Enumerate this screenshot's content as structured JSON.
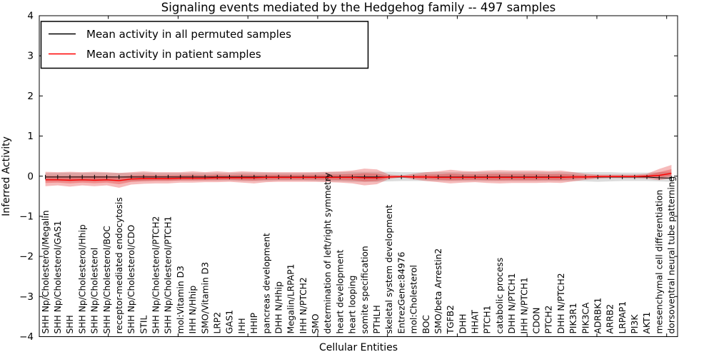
{
  "title": "Signaling events mediated by the Hedgehog family -- 497 samples",
  "axes": {
    "xlabel": "Cellular Entities",
    "ylabel": "Inferred Activity",
    "ytick_labels": [
      "4",
      "3",
      "2",
      "1",
      "0",
      "−1",
      "−2",
      "−3",
      "−4"
    ],
    "ytick_values": [
      4,
      3,
      2,
      1,
      0,
      -1,
      -2,
      -3,
      -4
    ]
  },
  "legend": {
    "items": [
      {
        "label": "Mean activity in all permuted samples",
        "color": "#000000"
      },
      {
        "label": "Mean activity in patient samples",
        "color": "#ff0000"
      }
    ]
  },
  "chart_data": {
    "type": "line",
    "title": "Signaling events mediated by the Hedgehog family -- 497 samples",
    "xlabel": "Cellular Entities",
    "ylabel": "Inferred Activity",
    "ylim": [
      -4,
      4
    ],
    "grid": false,
    "legend_position": "upper left",
    "categories": [
      "SHH Np/Cholesterol/Megalin",
      "SHH Np/Cholesterol/GAS1",
      "SHH",
      "SHH Np/Cholesterol/Hhip",
      "SHH Np/Cholesterol",
      "SHH Np/Cholesterol/BOC",
      "receptor-mediated endocytosis",
      "SHH Np/Cholesterol/CDO",
      "STIL",
      "SHH Np/Cholesterol/PTCH2",
      "SHH Np/Cholesterol/PTCH1",
      "mol:Vitamin D3",
      "IHH N/Hhip",
      "SMO/Vitamin D3",
      "LRP2",
      "GAS1",
      "IHH",
      "HHIP",
      "pancreas development",
      "DHH N/Hhip",
      "Megalin/LRPAP1",
      "IHH N/PTCH2",
      "SMO",
      "determination of left/right symmetry",
      "heart development",
      "heart looping",
      "somite specification",
      "PTHLH",
      "skeletal system development",
      "EntrezGene:84976",
      "mol:Cholesterol",
      "BOC",
      "SMO/beta Arrestin2",
      "TGFB2",
      "DHH",
      "HHAT",
      "PTCH1",
      "catabolic process",
      "DHH N/PTCH1",
      "IHH N/PTCH1",
      "CDON",
      "PTCH2",
      "DHH N/PTCH2",
      "PIK3R1",
      "PIK3CA",
      "ADRBK1",
      "ARRB2",
      "LRPAP1",
      "PI3K",
      "AKT1",
      "mesenchymal cell differentiation",
      "dorsoventral neural tube patterning"
    ],
    "series": [
      {
        "name": "Mean activity in all permuted samples",
        "color": "#000000",
        "values": [
          -0.02,
          -0.02,
          -0.02,
          -0.02,
          -0.02,
          -0.02,
          -0.02,
          -0.02,
          -0.02,
          -0.02,
          -0.02,
          -0.02,
          -0.02,
          -0.02,
          -0.02,
          -0.02,
          -0.02,
          -0.02,
          -0.02,
          -0.02,
          -0.02,
          -0.02,
          -0.02,
          -0.02,
          -0.02,
          -0.02,
          -0.02,
          -0.02,
          -0.02,
          -0.02,
          -0.02,
          -0.02,
          -0.02,
          -0.02,
          -0.02,
          -0.02,
          -0.02,
          -0.02,
          -0.02,
          -0.02,
          -0.02,
          -0.02,
          -0.02,
          -0.02,
          -0.02,
          -0.02,
          -0.02,
          -0.02,
          -0.02,
          -0.02,
          -0.04,
          -0.05
        ]
      },
      {
        "name": "Mean activity in patient samples",
        "color": "#ff0000",
        "values": [
          -0.09,
          -0.09,
          -0.1,
          -0.09,
          -0.1,
          -0.09,
          -0.11,
          -0.07,
          -0.06,
          -0.06,
          -0.06,
          -0.05,
          -0.05,
          -0.05,
          -0.04,
          -0.04,
          -0.04,
          -0.04,
          -0.03,
          -0.03,
          -0.03,
          -0.03,
          -0.03,
          -0.03,
          -0.03,
          -0.03,
          -0.04,
          -0.04,
          -0.02,
          -0.01,
          -0.02,
          -0.02,
          -0.03,
          -0.03,
          -0.03,
          -0.03,
          -0.03,
          -0.03,
          -0.03,
          -0.03,
          -0.03,
          -0.03,
          -0.03,
          -0.02,
          -0.02,
          -0.01,
          -0.01,
          -0.01,
          -0.01,
          0.0,
          0.02,
          0.07
        ]
      }
    ],
    "bands": [
      {
        "name": "permuted-samples-band",
        "color": "rgba(140,140,140,0.30)",
        "upper": [
          0.08,
          0.08,
          0.09,
          0.08,
          0.09,
          0.08,
          0.08,
          0.08,
          0.09,
          0.08,
          0.08,
          0.08,
          0.08,
          0.08,
          0.08,
          0.08,
          0.09,
          0.09,
          0.09,
          0.08,
          0.08,
          0.08,
          0.09,
          0.1,
          0.1,
          0.11,
          0.11,
          0.11,
          0.11,
          0.1,
          0.1,
          0.1,
          0.1,
          0.1,
          0.1,
          0.1,
          0.1,
          0.1,
          0.1,
          0.1,
          0.1,
          0.1,
          0.1,
          0.1,
          0.1,
          0.1,
          0.1,
          0.09,
          0.09,
          0.09,
          0.1,
          0.11
        ],
        "lower": [
          -0.12,
          -0.12,
          -0.13,
          -0.12,
          -0.13,
          -0.12,
          -0.13,
          -0.12,
          -0.12,
          -0.11,
          -0.11,
          -0.11,
          -0.11,
          -0.11,
          -0.11,
          -0.11,
          -0.12,
          -0.12,
          -0.12,
          -0.11,
          -0.11,
          -0.11,
          -0.12,
          -0.13,
          -0.13,
          -0.14,
          -0.14,
          -0.14,
          -0.13,
          -0.12,
          -0.12,
          -0.12,
          -0.12,
          -0.12,
          -0.12,
          -0.12,
          -0.12,
          -0.12,
          -0.12,
          -0.12,
          -0.12,
          -0.12,
          -0.12,
          -0.12,
          -0.13,
          -0.14,
          -0.13,
          -0.12,
          -0.12,
          -0.12,
          -0.13,
          -0.14
        ]
      },
      {
        "name": "patient-samples-band",
        "color": "rgba(225,30,30,0.30)",
        "inner_fraction": 0.5,
        "upper": [
          0.11,
          0.1,
          0.11,
          0.1,
          0.11,
          0.1,
          0.08,
          0.1,
          0.12,
          0.1,
          0.1,
          0.1,
          0.12,
          0.1,
          0.12,
          0.1,
          0.12,
          0.11,
          0.1,
          0.1,
          0.1,
          0.1,
          0.1,
          0.11,
          0.12,
          0.14,
          0.19,
          0.17,
          0.04,
          0.02,
          0.06,
          0.1,
          0.12,
          0.16,
          0.13,
          0.12,
          0.14,
          0.15,
          0.14,
          0.14,
          0.14,
          0.13,
          0.14,
          0.1,
          0.06,
          0.04,
          0.04,
          0.04,
          0.04,
          0.06,
          0.18,
          0.28
        ],
        "lower": [
          -0.25,
          -0.23,
          -0.26,
          -0.23,
          -0.25,
          -0.23,
          -0.29,
          -0.21,
          -0.19,
          -0.18,
          -0.18,
          -0.16,
          -0.16,
          -0.15,
          -0.15,
          -0.14,
          -0.16,
          -0.18,
          -0.15,
          -0.14,
          -0.14,
          -0.14,
          -0.14,
          -0.15,
          -0.16,
          -0.18,
          -0.23,
          -0.2,
          -0.07,
          -0.03,
          -0.08,
          -0.12,
          -0.15,
          -0.18,
          -0.16,
          -0.15,
          -0.17,
          -0.18,
          -0.17,
          -0.17,
          -0.17,
          -0.16,
          -0.17,
          -0.13,
          -0.09,
          -0.06,
          -0.05,
          -0.05,
          -0.05,
          -0.06,
          -0.1,
          -0.05
        ]
      }
    ]
  }
}
